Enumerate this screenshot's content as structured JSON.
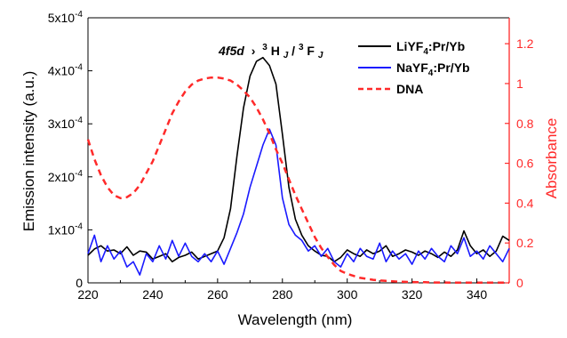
{
  "chart_data": {
    "type": "line",
    "annotation": {
      "prefix": "4f5d",
      "arrow": "›",
      "s1": "3",
      "h": "H",
      "j1": "J",
      "slash": "/",
      "s2": "3",
      "f": "F",
      "j2": "J"
    },
    "x_axis": {
      "label": "Wavelength (nm)",
      "range": [
        220,
        350
      ],
      "ticks": [
        220,
        240,
        260,
        280,
        300,
        320,
        340
      ]
    },
    "y_axis_left": {
      "label": "Emission intensity (a.u.)",
      "range": [
        0,
        0.0005
      ],
      "ticks": [
        {
          "v": 0,
          "base": "0",
          "exp": ""
        },
        {
          "v": 0.0001,
          "base": "1x10",
          "exp": "-4"
        },
        {
          "v": 0.0002,
          "base": "2x10",
          "exp": "-4"
        },
        {
          "v": 0.0003,
          "base": "3x10",
          "exp": "-4"
        },
        {
          "v": 0.0004,
          "base": "4x10",
          "exp": "-4"
        },
        {
          "v": 0.0005,
          "base": "5x10",
          "exp": "-4"
        }
      ]
    },
    "y_axis_right": {
      "label": "Absorbance",
      "color": "#ff2a2a",
      "range": [
        0,
        1.33
      ],
      "ticks": [
        0,
        0.2,
        0.4,
        0.6,
        0.8,
        1,
        1.2
      ],
      "tick_labels": [
        "0",
        "0.2",
        "0.4",
        "0.6",
        "0.8",
        "1",
        "1.2"
      ]
    },
    "legend": {
      "placement": "top-right"
    },
    "series": [
      {
        "key": "li",
        "legend_parts": [
          "LiYF",
          "4",
          ":Pr/Yb"
        ],
        "color": "#000000",
        "dash": "solid",
        "axis": "left",
        "x": [
          220,
          222,
          224,
          226,
          228,
          230,
          232,
          234,
          236,
          238,
          240,
          242,
          244,
          246,
          248,
          250,
          252,
          254,
          256,
          258,
          260,
          262,
          264,
          266,
          268,
          270,
          272,
          274,
          276,
          278,
          280,
          282,
          284,
          286,
          288,
          290,
          292,
          294,
          296,
          298,
          300,
          302,
          304,
          306,
          308,
          310,
          312,
          314,
          316,
          318,
          320,
          322,
          324,
          326,
          328,
          330,
          332,
          334,
          336,
          338,
          340,
          342,
          344,
          346,
          348,
          350
        ],
        "y": [
          5.2e-05,
          6.4e-05,
          7e-05,
          6e-05,
          6.2e-05,
          5.5e-05,
          6.8e-05,
          5.2e-05,
          6e-05,
          5.8e-05,
          4.5e-05,
          5e-05,
          5.5e-05,
          4e-05,
          4.8e-05,
          5.2e-05,
          5.8e-05,
          4.5e-05,
          5e-05,
          5.5e-05,
          6e-05,
          8.5e-05,
          0.00014,
          0.00024,
          0.00033,
          0.00039,
          0.000418,
          0.000425,
          0.00041,
          0.000375,
          0.00028,
          0.00018,
          0.00012,
          9e-05,
          7e-05,
          6e-05,
          5.2e-05,
          5e-05,
          4e-05,
          4.8e-05,
          6.2e-05,
          5.5e-05,
          5e-05,
          6.2e-05,
          5.5e-05,
          6e-05,
          7e-05,
          5e-05,
          5.5e-05,
          6.2e-05,
          5.8e-05,
          5.2e-05,
          6e-05,
          5.5e-05,
          4.8e-05,
          5.8e-05,
          5e-05,
          6.2e-05,
          9.8e-05,
          7e-05,
          5.5e-05,
          6.2e-05,
          5e-05,
          6e-05,
          8.8e-05,
          8e-05
        ]
      },
      {
        "key": "na",
        "legend_parts": [
          "NaYF",
          "4",
          ":Pr/Yb"
        ],
        "color": "#1a1aff",
        "dash": "solid",
        "axis": "left",
        "x": [
          220,
          222,
          224,
          226,
          228,
          230,
          232,
          234,
          236,
          238,
          240,
          242,
          244,
          246,
          248,
          250,
          252,
          254,
          256,
          258,
          260,
          262,
          264,
          266,
          268,
          270,
          272,
          274,
          276,
          278,
          280,
          282,
          284,
          286,
          288,
          290,
          292,
          294,
          296,
          298,
          300,
          302,
          304,
          306,
          308,
          310,
          312,
          314,
          316,
          318,
          320,
          322,
          324,
          326,
          328,
          330,
          332,
          334,
          336,
          338,
          340,
          342,
          344,
          346,
          348,
          350
        ],
        "y": [
          5.5e-05,
          9e-05,
          4e-05,
          7e-05,
          4.5e-05,
          6e-05,
          3e-05,
          4e-05,
          1.5e-05,
          5.5e-05,
          4e-05,
          7e-05,
          4.5e-05,
          8e-05,
          5e-05,
          7.5e-05,
          5e-05,
          4e-05,
          5.5e-05,
          4e-05,
          6e-05,
          3.5e-05,
          6.5e-05,
          9.5e-05,
          0.00013,
          0.00018,
          0.00022,
          0.00026,
          0.00029,
          0.00026,
          0.00016,
          0.00011,
          9e-05,
          8e-05,
          6e-05,
          7e-05,
          5e-05,
          6.5e-05,
          4e-05,
          3e-05,
          5.5e-05,
          4e-05,
          6.5e-05,
          5e-05,
          4.5e-05,
          7.5e-05,
          4e-05,
          6e-05,
          4.5e-05,
          5.5e-05,
          3.5e-05,
          6e-05,
          4.5e-05,
          6.5e-05,
          5e-05,
          4e-05,
          7e-05,
          5.5e-05,
          8.5e-05,
          5e-05,
          6e-05,
          4.5e-05,
          7e-05,
          5.5e-05,
          4e-05,
          6.5e-05
        ]
      },
      {
        "key": "dna",
        "legend_parts": [
          "DNA",
          "",
          ""
        ],
        "color": "#ff2a2a",
        "dash": "dashed",
        "axis": "right",
        "x": [
          220,
          222,
          224,
          226,
          228,
          230,
          232,
          234,
          236,
          238,
          240,
          242,
          244,
          246,
          248,
          250,
          252,
          254,
          256,
          258,
          260,
          262,
          264,
          266,
          268,
          270,
          272,
          274,
          276,
          278,
          280,
          282,
          284,
          286,
          288,
          290,
          292,
          294,
          296,
          298,
          300,
          302,
          304,
          306,
          308,
          310,
          312,
          314,
          316,
          318,
          320,
          322,
          324,
          326,
          328,
          330,
          332,
          334,
          336,
          338,
          340,
          342,
          344,
          346,
          348,
          350
        ],
        "y": [
          0.72,
          0.62,
          0.54,
          0.48,
          0.44,
          0.425,
          0.43,
          0.45,
          0.49,
          0.55,
          0.61,
          0.69,
          0.77,
          0.85,
          0.91,
          0.96,
          0.995,
          1.015,
          1.025,
          1.03,
          1.03,
          1.025,
          1.015,
          0.995,
          0.965,
          0.93,
          0.88,
          0.82,
          0.75,
          0.67,
          0.6,
          0.52,
          0.44,
          0.37,
          0.3,
          0.23,
          0.175,
          0.13,
          0.09,
          0.06,
          0.045,
          0.035,
          0.025,
          0.02,
          0.015,
          0.012,
          0.01,
          0.008,
          0.006,
          0.005,
          0.004,
          0.003,
          0.003,
          0.002,
          0.002,
          0.002,
          0.001,
          0.001,
          0.001,
          0.001,
          0.001,
          0.001,
          0.001,
          0.001,
          0.001,
          0.001
        ]
      }
    ]
  }
}
